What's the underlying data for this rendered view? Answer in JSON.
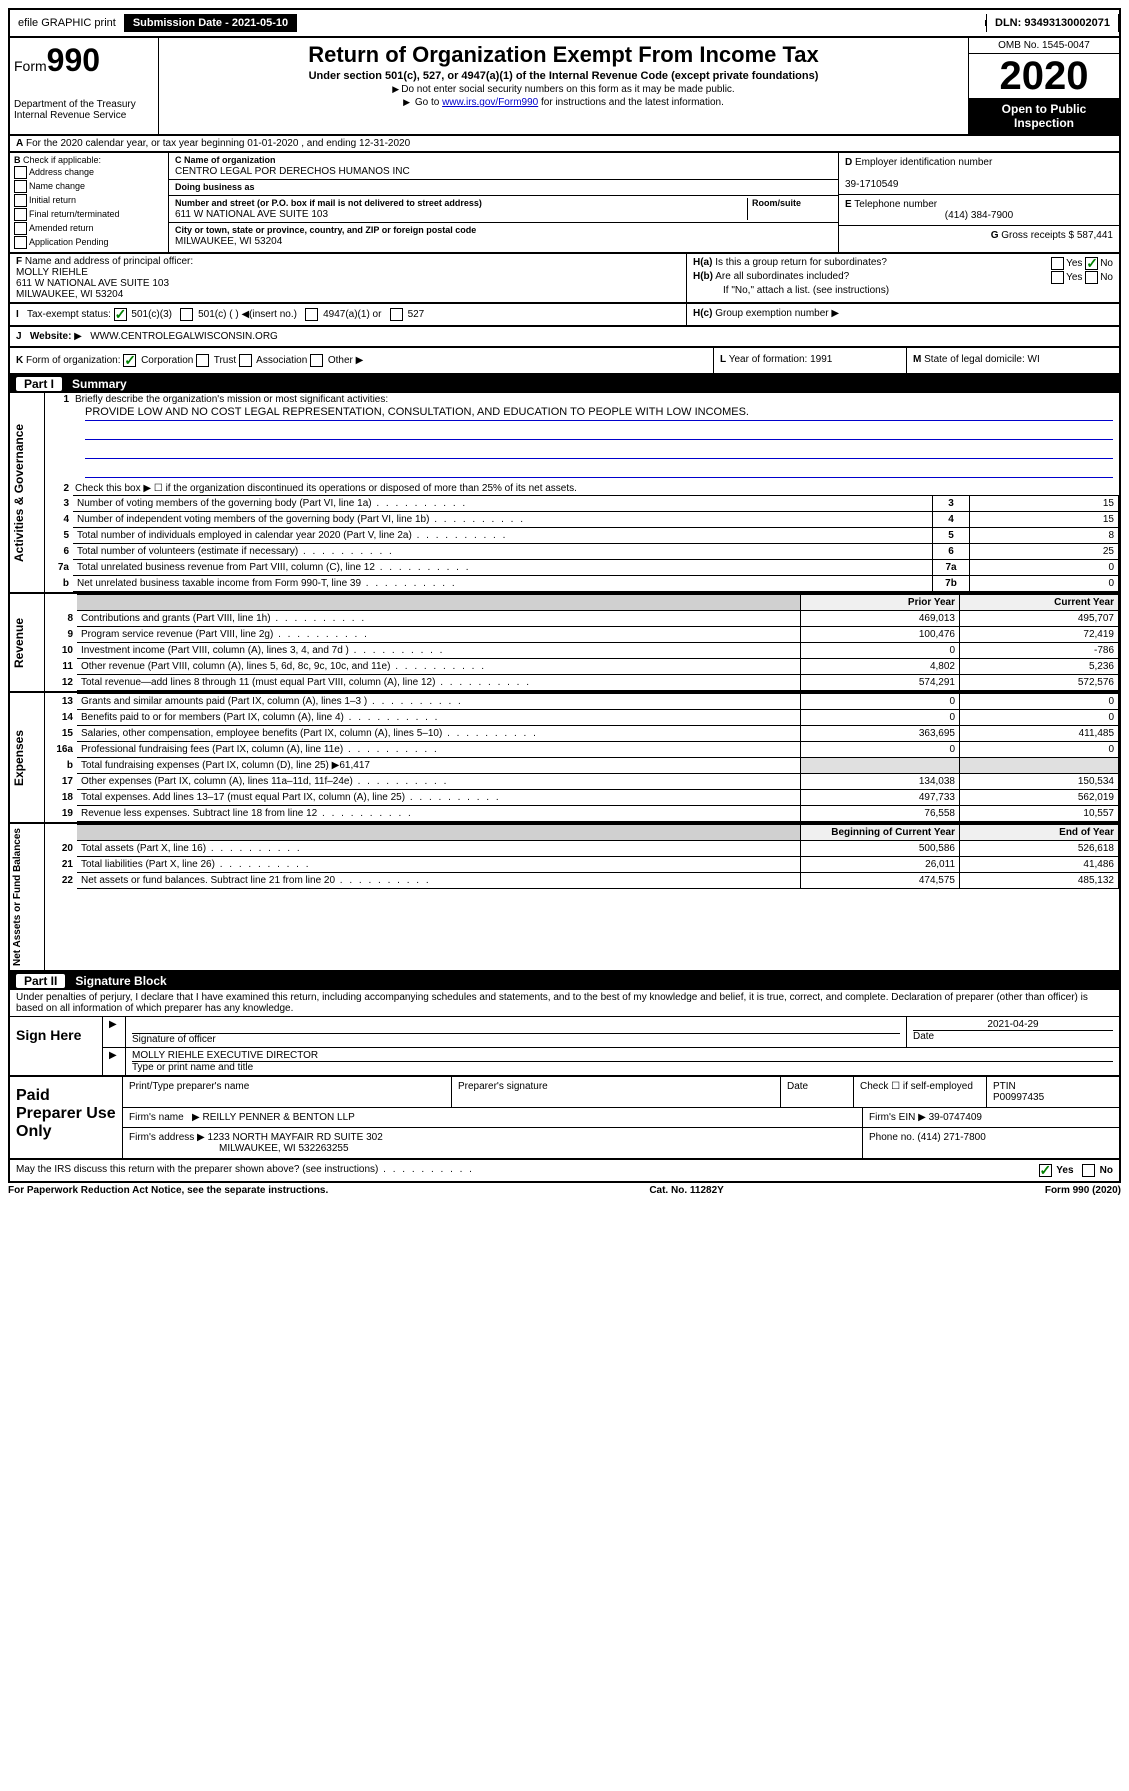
{
  "topbar": {
    "efile": "efile GRAPHIC print",
    "submission_label": "Submission Date - 2021-05-10",
    "dln": "DLN: 93493130002071"
  },
  "header": {
    "form_prefix": "Form",
    "form_number": "990",
    "dept": "Department of the Treasury",
    "irs": "Internal Revenue Service",
    "title": "Return of Organization Exempt From Income Tax",
    "subtitle": "Under section 501(c), 527, or 4947(a)(1) of the Internal Revenue Code (except private foundations)",
    "note1": "Do not enter social security numbers on this form as it may be made public.",
    "note2_prefix": "Go to ",
    "note2_link": "www.irs.gov/Form990",
    "note2_suffix": " for instructions and the latest information.",
    "omb": "OMB No. 1545-0047",
    "year": "2020",
    "open": "Open to Public Inspection"
  },
  "rowA": {
    "text": "For the 2020 calendar year, or tax year beginning 01-01-2020   , and ending 12-31-2020"
  },
  "boxB": {
    "label": "Check if applicable:",
    "items": [
      "Address change",
      "Name change",
      "Initial return",
      "Final return/terminated",
      "Amended return",
      "Application Pending"
    ]
  },
  "boxC": {
    "name_label": "Name of organization",
    "name": "CENTRO LEGAL POR DERECHOS HUMANOS INC",
    "dba_label": "Doing business as",
    "addr_label": "Number and street (or P.O. box if mail is not delivered to street address)",
    "room_label": "Room/suite",
    "addr": "611 W NATIONAL AVE SUITE 103",
    "city_label": "City or town, state or province, country, and ZIP or foreign postal code",
    "city": "MILWAUKEE, WI  53204"
  },
  "boxD": {
    "label": "Employer identification number",
    "value": "39-1710549"
  },
  "boxE": {
    "label": "Telephone number",
    "value": "(414) 384-7900"
  },
  "boxG": {
    "label": "Gross receipts $",
    "value": "587,441"
  },
  "boxF": {
    "label": "Name and address of principal officer:",
    "name": "MOLLY RIEHLE",
    "addr": "611 W NATIONAL AVE SUITE 103",
    "city": "MILWAUKEE, WI  53204"
  },
  "boxH": {
    "ha": "Is this a group return for subordinates?",
    "hb": "Are all subordinates included?",
    "hb_note": "If \"No,\" attach a list. (see instructions)",
    "hc": "Group exemption number",
    "yes": "Yes",
    "no": "No"
  },
  "taxExempt": {
    "label": "Tax-exempt status:",
    "opt1": "501(c)(3)",
    "opt2": "501(c) (  )",
    "opt2_note": "(insert no.)",
    "opt3": "4947(a)(1) or",
    "opt4": "527"
  },
  "website": {
    "label": "Website:",
    "value": "WWW.CENTROLEGALWISCONSIN.ORG"
  },
  "rowK": {
    "label": "Form of organization:",
    "opts": [
      "Corporation",
      "Trust",
      "Association",
      "Other"
    ]
  },
  "rowL": {
    "label": "Year of formation:",
    "value": "1991"
  },
  "rowM": {
    "label": "State of legal domicile:",
    "value": "WI"
  },
  "part1": {
    "part": "Part I",
    "title": "Summary",
    "sideA": "Activities & Governance",
    "sideR": "Revenue",
    "sideE": "Expenses",
    "sideN": "Net Assets or Fund Balances",
    "q1": "Briefly describe the organization's mission or most significant activities:",
    "mission": "PROVIDE LOW AND NO COST LEGAL REPRESENTATION, CONSULTATION, AND EDUCATION TO PEOPLE WITH LOW INCOMES.",
    "q2": "Check this box ▶ ☐  if the organization discontinued its operations or disposed of more than 25% of its net assets.",
    "lines_ag": [
      {
        "n": "3",
        "d": "Number of voting members of the governing body (Part VI, line 1a)",
        "v": "15"
      },
      {
        "n": "4",
        "d": "Number of independent voting members of the governing body (Part VI, line 1b)",
        "v": "15"
      },
      {
        "n": "5",
        "d": "Total number of individuals employed in calendar year 2020 (Part V, line 2a)",
        "v": "8"
      },
      {
        "n": "6",
        "d": "Total number of volunteers (estimate if necessary)",
        "v": "25"
      },
      {
        "n": "7a",
        "d": "Total unrelated business revenue from Part VIII, column (C), line 12",
        "v": "0"
      },
      {
        "n": "b",
        "d": "Net unrelated business taxable income from Form 990-T, line 39",
        "ln": "7b",
        "v": "0"
      }
    ],
    "prior_year": "Prior Year",
    "current_year": "Current Year",
    "rev": [
      {
        "n": "8",
        "d": "Contributions and grants (Part VIII, line 1h)",
        "p": "469,013",
        "c": "495,707"
      },
      {
        "n": "9",
        "d": "Program service revenue (Part VIII, line 2g)",
        "p": "100,476",
        "c": "72,419"
      },
      {
        "n": "10",
        "d": "Investment income (Part VIII, column (A), lines 3, 4, and 7d )",
        "p": "0",
        "c": "-786"
      },
      {
        "n": "11",
        "d": "Other revenue (Part VIII, column (A), lines 5, 6d, 8c, 9c, 10c, and 11e)",
        "p": "4,802",
        "c": "5,236"
      },
      {
        "n": "12",
        "d": "Total revenue—add lines 8 through 11 (must equal Part VIII, column (A), line 12)",
        "p": "574,291",
        "c": "572,576"
      }
    ],
    "exp": [
      {
        "n": "13",
        "d": "Grants and similar amounts paid (Part IX, column (A), lines 1–3 )",
        "p": "0",
        "c": "0"
      },
      {
        "n": "14",
        "d": "Benefits paid to or for members (Part IX, column (A), line 4)",
        "p": "0",
        "c": "0"
      },
      {
        "n": "15",
        "d": "Salaries, other compensation, employee benefits (Part IX, column (A), lines 5–10)",
        "p": "363,695",
        "c": "411,485"
      },
      {
        "n": "16a",
        "d": "Professional fundraising fees (Part IX, column (A), line 11e)",
        "p": "0",
        "c": "0"
      },
      {
        "n": "b",
        "d": "Total fundraising expenses (Part IX, column (D), line 25) ▶61,417",
        "p": "",
        "c": "",
        "noval": true
      },
      {
        "n": "17",
        "d": "Other expenses (Part IX, column (A), lines 11a–11d, 11f–24e)",
        "p": "134,038",
        "c": "150,534"
      },
      {
        "n": "18",
        "d": "Total expenses. Add lines 13–17 (must equal Part IX, column (A), line 25)",
        "p": "497,733",
        "c": "562,019"
      },
      {
        "n": "19",
        "d": "Revenue less expenses. Subtract line 18 from line 12",
        "p": "76,558",
        "c": "10,557"
      }
    ],
    "beg_year": "Beginning of Current Year",
    "end_year": "End of Year",
    "net": [
      {
        "n": "20",
        "d": "Total assets (Part X, line 16)",
        "p": "500,586",
        "c": "526,618"
      },
      {
        "n": "21",
        "d": "Total liabilities (Part X, line 26)",
        "p": "26,011",
        "c": "41,486"
      },
      {
        "n": "22",
        "d": "Net assets or fund balances. Subtract line 21 from line 20",
        "p": "474,575",
        "c": "485,132"
      }
    ]
  },
  "part2": {
    "part": "Part II",
    "title": "Signature Block",
    "decl": "Under penalties of perjury, I declare that I have examined this return, including accompanying schedules and statements, and to the best of my knowledge and belief, it is true, correct, and complete. Declaration of preparer (other than officer) is based on all information of which preparer has any knowledge.",
    "sign_here": "Sign Here",
    "sig_officer": "Signature of officer",
    "date": "Date",
    "sig_date": "2021-04-29",
    "name_title": "MOLLY RIEHLE  EXECUTIVE DIRECTOR",
    "name_label": "Type or print name and title",
    "paid": "Paid Preparer Use Only",
    "prep_name_label": "Print/Type preparer's name",
    "prep_sig_label": "Preparer's signature",
    "prep_date_label": "Date",
    "check_if": "Check ☐ if self-employed",
    "ptin_label": "PTIN",
    "ptin": "P00997435",
    "firm_name_label": "Firm's name",
    "firm_name": "REILLY PENNER & BENTON LLP",
    "firm_ein_label": "Firm's EIN",
    "firm_ein": "39-0747409",
    "firm_addr_label": "Firm's address",
    "firm_addr": "1233 NORTH MAYFAIR RD SUITE 302",
    "firm_city": "MILWAUKEE, WI  532263255",
    "phone_label": "Phone no.",
    "phone": "(414) 271-7800",
    "discuss": "May the IRS discuss this return with the preparer shown above? (see instructions)"
  },
  "footer": {
    "left": "For Paperwork Reduction Act Notice, see the separate instructions.",
    "center": "Cat. No. 11282Y",
    "right": "Form 990 (2020)"
  }
}
